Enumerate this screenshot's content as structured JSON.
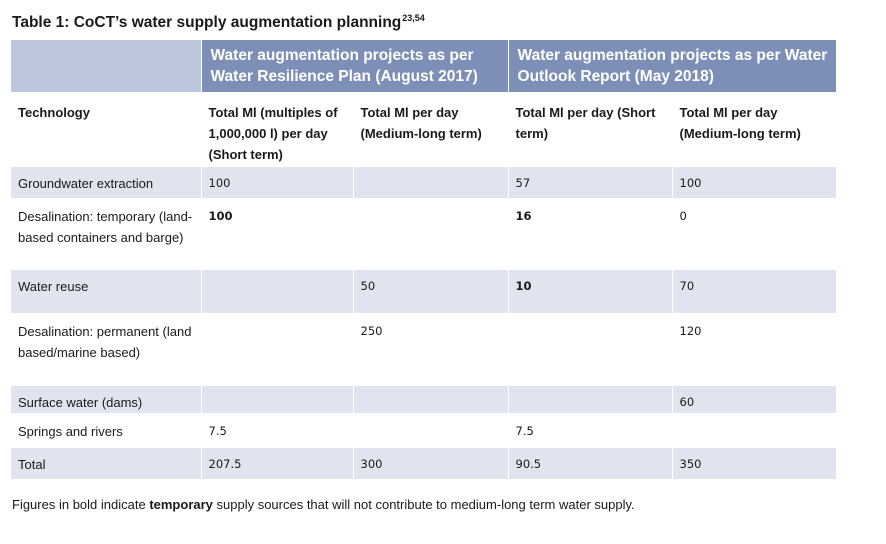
{
  "title": {
    "text": "Table 1: CoCT’s water supply augmentation planning",
    "refs": "23,54"
  },
  "group_headers": [
    {
      "label": "Water augmentation projects as per Water Resilience Plan (August 2017)"
    },
    {
      "label": "Water augmentation projects as per Water Outlook Report (May 2018)"
    }
  ],
  "columns": [
    "Technology",
    "Total Ml (multiples of 1,000,000 l) per day (Short term)",
    "Total Ml per day (Medium-long term)",
    "Total Ml per day (Short term)",
    "Total Ml per day (Medium-long term)"
  ],
  "rows": [
    {
      "technology": "Groundwater extraction",
      "c1": "100",
      "c2": "",
      "c3": "57",
      "c4": "100",
      "bold": []
    },
    {
      "technology": "Desalination: temporary (land-based containers and barge)",
      "c1": "100",
      "c2": "",
      "c3": "16",
      "c4": "0",
      "bold": [
        "c1",
        "c3"
      ]
    },
    {
      "technology": "Water reuse",
      "c1": "",
      "c2": "50",
      "c3": "10",
      "c4": "70",
      "bold": [
        "c3"
      ]
    },
    {
      "technology": "Desalination: permanent (land based/marine based)",
      "c1": "",
      "c2": "250",
      "c3": "",
      "c4": "120",
      "bold": []
    },
    {
      "technology": "Surface water (dams)",
      "c1": "",
      "c2": "",
      "c3": "",
      "c4": "60",
      "bold": []
    },
    {
      "technology": "Springs and rivers",
      "c1": "7.5",
      "c2": "",
      "c3": "7.5",
      "c4": "",
      "bold": []
    },
    {
      "technology": "Total",
      "c1": "207.5",
      "c2": "300",
      "c3": "90.5",
      "c4": "350",
      "bold": []
    }
  ],
  "footnote": {
    "before": "Figures in bold indicate ",
    "bold": "temporary",
    "after": " supply sources that will not contribute to medium-long term water supply."
  },
  "colors": {
    "header": "#7d8fb6",
    "header_blank": "#bcc6dc",
    "row_shade": "#dfe4ef"
  }
}
